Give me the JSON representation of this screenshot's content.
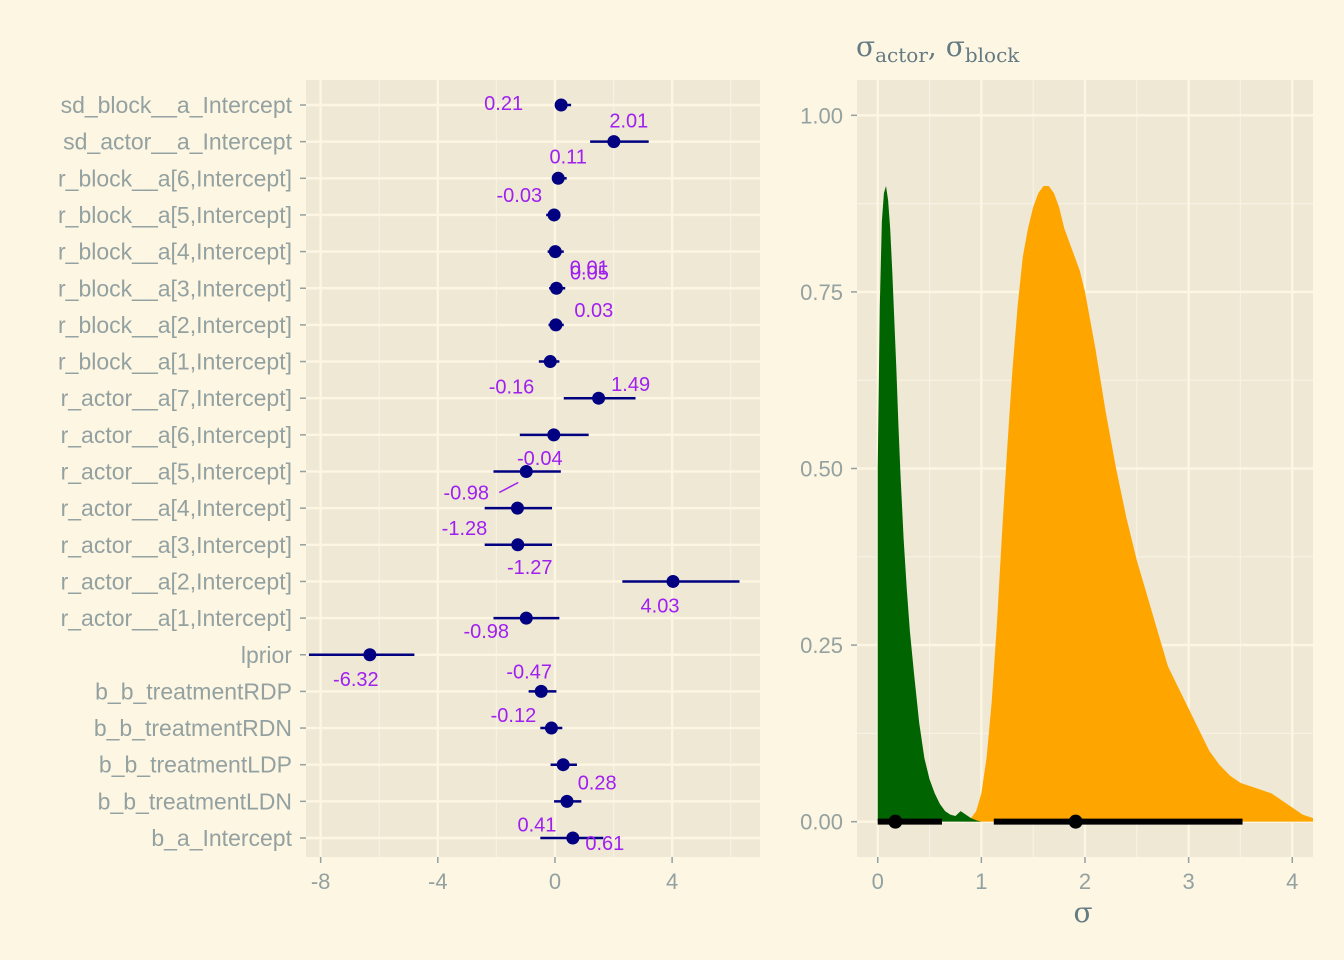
{
  "chart_data": [
    {
      "type": "interval",
      "categories": [
        "sd_block__a_Intercept",
        "sd_actor__a_Intercept",
        "r_block__a[6,Intercept]",
        "r_block__a[5,Intercept]",
        "r_block__a[4,Intercept]",
        "r_block__a[3,Intercept]",
        "r_block__a[2,Intercept]",
        "r_block__a[1,Intercept]",
        "r_actor__a[7,Intercept]",
        "r_actor__a[6,Intercept]",
        "r_actor__a[5,Intercept]",
        "r_actor__a[4,Intercept]",
        "r_actor__a[3,Intercept]",
        "r_actor__a[2,Intercept]",
        "r_actor__a[1,Intercept]",
        "lprior",
        "b_b_treatmentRDP",
        "b_b_treatmentRDN",
        "b_b_treatmentLDP",
        "b_b_treatmentLDN",
        "b_a_Intercept"
      ],
      "estimates": [
        0.21,
        2.01,
        0.11,
        -0.03,
        0.01,
        0.05,
        0.03,
        -0.16,
        1.49,
        -0.04,
        -0.98,
        -1.28,
        -1.27,
        4.03,
        -0.98,
        -6.32,
        -0.47,
        -0.12,
        0.28,
        0.41,
        0.61
      ],
      "lower": [
        0.05,
        1.2,
        -0.1,
        -0.3,
        -0.25,
        -0.2,
        -0.22,
        -0.55,
        0.3,
        -1.2,
        -2.1,
        -2.4,
        -2.4,
        2.3,
        -2.1,
        -8.4,
        -0.9,
        -0.5,
        -0.15,
        -0.03,
        -0.5
      ],
      "upper": [
        0.55,
        3.2,
        0.4,
        0.15,
        0.3,
        0.35,
        0.3,
        0.15,
        2.75,
        1.15,
        0.2,
        -0.1,
        -0.1,
        6.3,
        0.15,
        -4.8,
        0.05,
        0.25,
        0.75,
        0.9,
        1.65
      ],
      "labels": [
        "0.21",
        "2.01",
        "0.11",
        "-0.03",
        "0.01",
        "0.05",
        "0.03",
        "-0.16",
        "1.49",
        "-0.04",
        "-0.98",
        "-1.28",
        "-1.27",
        "4.03",
        "-0.98",
        "-6.32",
        "-0.47",
        "-0.12",
        "0.28",
        "0.41",
        "0.61"
      ],
      "xlim": [
        -8.5,
        7
      ],
      "xticks": [
        "-8",
        "-4",
        "0",
        "4"
      ],
      "xtick_values": [
        -8,
        -4,
        0,
        4
      ],
      "point_color": "#000080",
      "label_color": "#a020f0"
    },
    {
      "type": "area",
      "title_base": "σ",
      "title_sub1": "actor",
      "title_sep": ", ",
      "title_sub2": "block",
      "xlabel": "σ",
      "xlim": [
        -0.2,
        4.2
      ],
      "ylim": [
        -0.05,
        1.05
      ],
      "xticks": [
        "0",
        "1",
        "2",
        "3",
        "4"
      ],
      "xtick_values": [
        0,
        1,
        2,
        3,
        4
      ],
      "yticks": [
        "0.00",
        "0.25",
        "0.50",
        "0.75",
        "1.00"
      ],
      "ytick_values": [
        0,
        0.25,
        0.5,
        0.75,
        1.0
      ],
      "series": [
        {
          "color": "#006400",
          "x": [
            0.0,
            0.02,
            0.04,
            0.06,
            0.08,
            0.1,
            0.12,
            0.14,
            0.16,
            0.18,
            0.2,
            0.22,
            0.25,
            0.28,
            0.31,
            0.35,
            0.4,
            0.45,
            0.5,
            0.55,
            0.6,
            0.65,
            0.7,
            0.75,
            0.8,
            0.85,
            0.9,
            0.95,
            1.0
          ],
          "y": [
            0.5,
            0.73,
            0.85,
            0.89,
            0.9,
            0.88,
            0.84,
            0.78,
            0.71,
            0.64,
            0.56,
            0.49,
            0.4,
            0.33,
            0.27,
            0.21,
            0.14,
            0.09,
            0.06,
            0.04,
            0.025,
            0.015,
            0.01,
            0.008,
            0.015,
            0.01,
            0.005,
            0.002,
            0.0
          ],
          "interval": [
            0.0,
            0.62
          ],
          "point": 0.17
        },
        {
          "color": "#ffa500",
          "x": [
            0.85,
            0.9,
            0.95,
            1.0,
            1.05,
            1.1,
            1.15,
            1.2,
            1.25,
            1.3,
            1.35,
            1.4,
            1.45,
            1.5,
            1.55,
            1.6,
            1.65,
            1.7,
            1.75,
            1.8,
            1.85,
            1.9,
            1.95,
            2.0,
            2.1,
            2.2,
            2.3,
            2.4,
            2.5,
            2.6,
            2.7,
            2.8,
            2.9,
            3.0,
            3.1,
            3.2,
            3.3,
            3.4,
            3.5,
            3.6,
            3.7,
            3.8,
            3.9,
            4.0,
            4.1,
            4.2
          ],
          "y": [
            0.0,
            0.005,
            0.015,
            0.04,
            0.09,
            0.17,
            0.28,
            0.41,
            0.53,
            0.64,
            0.73,
            0.8,
            0.84,
            0.87,
            0.89,
            0.9,
            0.9,
            0.89,
            0.87,
            0.84,
            0.82,
            0.8,
            0.78,
            0.75,
            0.67,
            0.58,
            0.5,
            0.43,
            0.37,
            0.32,
            0.27,
            0.22,
            0.19,
            0.16,
            0.13,
            0.1,
            0.08,
            0.065,
            0.055,
            0.05,
            0.045,
            0.04,
            0.03,
            0.02,
            0.01,
            0.005
          ],
          "interval": [
            1.12,
            3.52
          ],
          "point": 1.91
        }
      ]
    }
  ]
}
